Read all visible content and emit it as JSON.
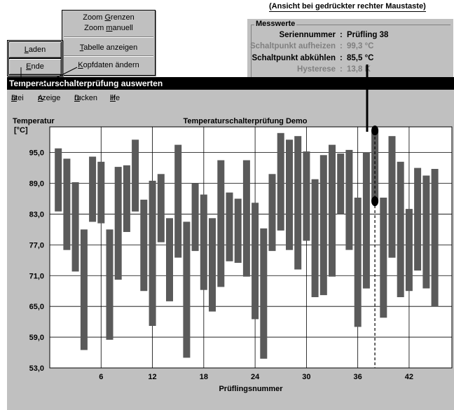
{
  "note": "(Ansicht bei gedrückter rechter Maustaste)",
  "context_menu": {
    "items": [
      {
        "pre": "Zoom ",
        "acc": "G",
        "post": "renzen"
      },
      {
        "pre": "Zoom ",
        "acc": "m",
        "post": "anuell"
      },
      {
        "pre": "",
        "acc": "T",
        "post": "abelle anzeigen"
      },
      {
        "pre": "",
        "acc": "K",
        "post": "opfdaten ändern"
      }
    ]
  },
  "file_menu": {
    "items": [
      {
        "pre": "",
        "acc": "L",
        "post": "aden"
      },
      {
        "pre": "",
        "acc": "E",
        "post": "nde"
      }
    ]
  },
  "messwerte": {
    "title": "Messwerte",
    "rows": [
      {
        "label": "Seriennummer",
        "value": "Prüfling 38"
      },
      {
        "label": "Schaltpunkt aufheizen",
        "value": "99,3 °C"
      },
      {
        "label": "Schaltpunkt abkühlen",
        "value": "85,5 °C"
      },
      {
        "label": "Hysterese",
        "value": "13,8 K"
      }
    ]
  },
  "window_title": "Temperaturschalterprüfung auswerten",
  "menubar": [
    {
      "acc": "D",
      "post": "atei"
    },
    {
      "acc": "A",
      "post": "nzeige"
    },
    {
      "acc": "D",
      "post": "rucken"
    },
    {
      "acc": "H",
      "post": "ilfe"
    }
  ],
  "chart_data": {
    "type": "floating-bar",
    "title": "Temperaturschalterprüfung Demo",
    "ylabel": "Temperatur",
    "yunit": "[°C]",
    "xlabel": "Prüflingsnummer",
    "ylim": [
      53,
      100
    ],
    "yticks": [
      "53,0",
      "59,0",
      "65,0",
      "71,0",
      "77,0",
      "83,0",
      "89,0",
      "95,0"
    ],
    "xlim": [
      0,
      47
    ],
    "xticks": [
      6,
      12,
      18,
      24,
      30,
      36,
      42
    ],
    "selected": 38,
    "bars": [
      {
        "x": 1,
        "low": 83.5,
        "high": 95.8
      },
      {
        "x": 2,
        "low": 76.0,
        "high": 93.8
      },
      {
        "x": 3,
        "low": 71.8,
        "high": 89.2
      },
      {
        "x": 4,
        "low": 56.5,
        "high": 80.0
      },
      {
        "x": 5,
        "low": 81.5,
        "high": 94.2
      },
      {
        "x": 6,
        "low": 81.2,
        "high": 93.2
      },
      {
        "x": 7,
        "low": 58.5,
        "high": 80.0
      },
      {
        "x": 8,
        "low": 70.2,
        "high": 92.2
      },
      {
        "x": 9,
        "low": 79.5,
        "high": 92.5
      },
      {
        "x": 10,
        "low": 83.5,
        "high": 97.5
      },
      {
        "x": 11,
        "low": 68.0,
        "high": 85.8
      },
      {
        "x": 12,
        "low": 61.2,
        "high": 89.5
      },
      {
        "x": 13,
        "low": 77.5,
        "high": 90.8
      },
      {
        "x": 14,
        "low": 66.0,
        "high": 82.2
      },
      {
        "x": 15,
        "low": 74.5,
        "high": 96.5
      },
      {
        "x": 16,
        "low": 55.0,
        "high": 81.5
      },
      {
        "x": 17,
        "low": 75.8,
        "high": 89.0
      },
      {
        "x": 18,
        "low": 68.2,
        "high": 86.8
      },
      {
        "x": 19,
        "low": 64.0,
        "high": 82.2
      },
      {
        "x": 20,
        "low": 68.8,
        "high": 93.5
      },
      {
        "x": 21,
        "low": 73.8,
        "high": 87.2
      },
      {
        "x": 22,
        "low": 73.5,
        "high": 86.0
      },
      {
        "x": 23,
        "low": 70.8,
        "high": 93.5
      },
      {
        "x": 24,
        "low": 62.5,
        "high": 85.2
      },
      {
        "x": 25,
        "low": 54.8,
        "high": 80.2
      },
      {
        "x": 26,
        "low": 75.8,
        "high": 90.8
      },
      {
        "x": 27,
        "low": 79.8,
        "high": 98.8
      },
      {
        "x": 28,
        "low": 76.0,
        "high": 97.5
      },
      {
        "x": 29,
        "low": 72.2,
        "high": 98.2
      },
      {
        "x": 30,
        "low": 77.8,
        "high": 95.2
      },
      {
        "x": 31,
        "low": 66.8,
        "high": 89.8
      },
      {
        "x": 32,
        "low": 67.2,
        "high": 94.5
      },
      {
        "x": 33,
        "low": 70.8,
        "high": 96.5
      },
      {
        "x": 34,
        "low": 83.0,
        "high": 94.8
      },
      {
        "x": 35,
        "low": 76.0,
        "high": 95.5
      },
      {
        "x": 36,
        "low": 61.0,
        "high": 86.2
      },
      {
        "x": 37,
        "low": 68.5,
        "high": 95.0
      },
      {
        "x": 38,
        "low": 85.5,
        "high": 99.3
      },
      {
        "x": 39,
        "low": 62.8,
        "high": 86.2
      },
      {
        "x": 40,
        "low": 74.5,
        "high": 98.2
      },
      {
        "x": 41,
        "low": 66.8,
        "high": 93.2
      },
      {
        "x": 42,
        "low": 68.0,
        "high": 84.0
      },
      {
        "x": 43,
        "low": 72.0,
        "high": 92.0
      },
      {
        "x": 44,
        "low": 68.5,
        "high": 90.5
      },
      {
        "x": 45,
        "low": 65.0,
        "high": 91.8
      }
    ]
  }
}
